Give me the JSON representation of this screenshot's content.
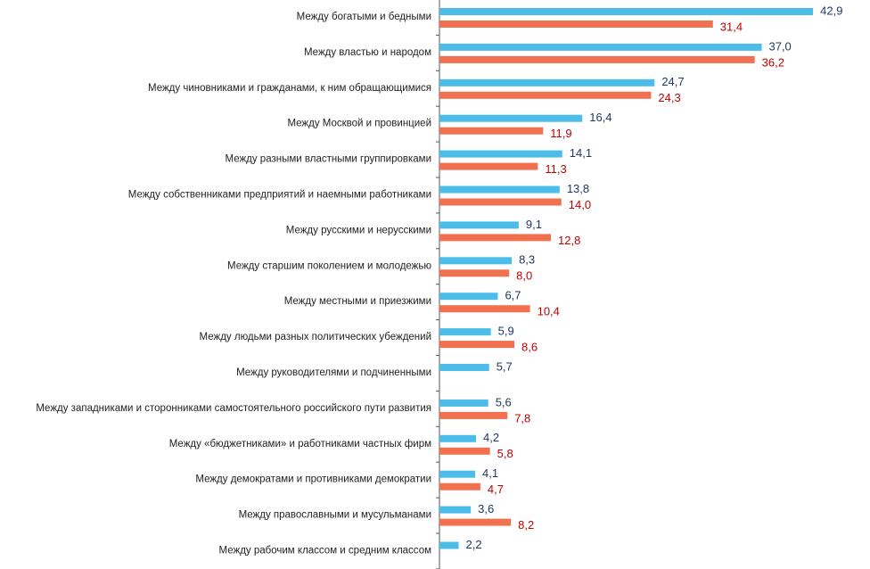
{
  "chart_data": {
    "type": "hbar",
    "categories": [
      "Между богатыми и бедными",
      "Между властью и народом",
      "Между чиновниками и гражданами, к ним обращающимися",
      "Между Москвой и провинцией",
      "Между разными властными группировками",
      "Между собственниками предприятий и наемными работниками",
      "Между русскими и нерусскими",
      "Между старшим поколением и молодежью",
      "Между местными и приезжими",
      "Между людьми разных политических убеждений",
      "Между руководителями и подчиненными",
      "Между западниками и сторонниками самостоятельного российского пути развития",
      "Между «бюджетниками» и работниками частных фирм",
      "Между демократами и противниками демократии",
      "Между православными и мусульманами",
      "Между рабочим классом и средним классом"
    ],
    "series": [
      {
        "color": "#4bbde8",
        "label_color": "#1f3864",
        "values": [
          42.9,
          37.0,
          24.7,
          16.4,
          14.1,
          13.8,
          9.1,
          8.3,
          6.7,
          5.9,
          5.7,
          5.6,
          4.2,
          4.1,
          3.6,
          2.2
        ],
        "value_labels": [
          "42,9",
          "37,0",
          "24,7",
          "16,4",
          "14,1",
          "13,8",
          "9,1",
          "8,3",
          "6,7",
          "5,9",
          "5,7",
          "5,6",
          "4,2",
          "4,1",
          "3,6",
          "2,2"
        ]
      },
      {
        "color": "#f0704f",
        "label_color": "#c00000",
        "values": [
          31.4,
          36.2,
          24.3,
          11.9,
          11.3,
          14.0,
          12.8,
          8.0,
          10.4,
          8.6,
          null,
          7.8,
          5.8,
          4.7,
          8.2,
          null
        ],
        "value_labels": [
          "31,4",
          "36,2",
          "24,3",
          "11,9",
          "11,3",
          "14,0",
          "12,8",
          "8,0",
          "10,4",
          "8,6",
          null,
          "7,8",
          "5,8",
          "4,7",
          "8,2",
          null
        ]
      }
    ]
  }
}
